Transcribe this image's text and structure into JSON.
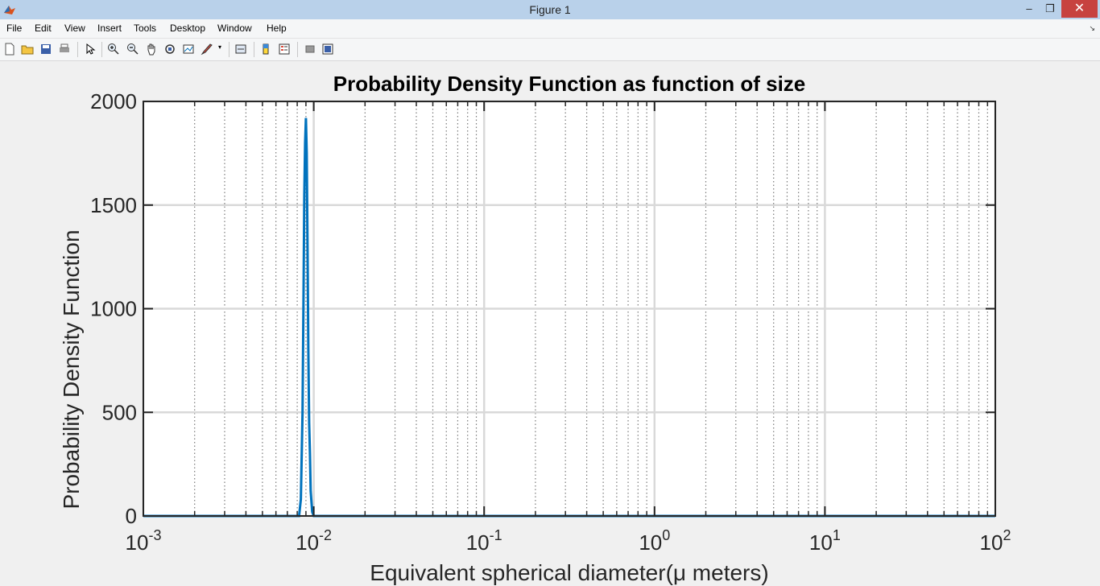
{
  "window": {
    "title": "Figure 1",
    "minimize": "–",
    "restore": "❐",
    "close": "✕"
  },
  "menu": [
    "File",
    "Edit",
    "View",
    "Insert",
    "Tools",
    "Desktop",
    "Window",
    "Help"
  ],
  "toolbar_icons": [
    "new-figure-icon",
    "open-file-icon",
    "save-icon",
    "print-icon",
    "pointer-icon",
    "zoom-in-icon",
    "zoom-out-icon",
    "pan-icon",
    "rotate-3d-icon",
    "data-cursor-icon",
    "brush-icon",
    "link-plot-icon",
    "colorbar-icon",
    "legend-icon",
    "hide-plot-tools-icon",
    "show-plot-tools-icon"
  ],
  "colors": {
    "line": "#0072bd",
    "grid": "#d9d9d9",
    "axes": "#262626"
  },
  "chart_data": {
    "type": "line",
    "title": "Probability Density Function as function of size",
    "xlabel": "Equivalent spherical diameter(μ meters)",
    "ylabel": "Probability Density Function",
    "xscale": "log",
    "xlim": [
      0.001,
      100
    ],
    "ylim": [
      0,
      2000
    ],
    "yticks": [
      "0",
      "500",
      "1000",
      "1500",
      "2000"
    ],
    "xticks": [
      {
        "base": "10",
        "exp": "-3",
        "value": 0.001
      },
      {
        "base": "10",
        "exp": "-2",
        "value": 0.01
      },
      {
        "base": "10",
        "exp": "-1",
        "value": 0.1
      },
      {
        "base": "10",
        "exp": "0",
        "value": 1
      },
      {
        "base": "10",
        "exp": "1",
        "value": 10
      },
      {
        "base": "10",
        "exp": "2",
        "value": 100
      }
    ],
    "grid": true,
    "minor_grid": true,
    "series": [
      {
        "x": [
          0.001,
          0.0082,
          0.0084,
          0.0086,
          0.0087,
          0.0088,
          0.0089,
          0.009,
          0.0091,
          0.0092,
          0.0093,
          0.0094,
          0.0095,
          0.0096,
          0.0098,
          0.01,
          100
        ],
        "y": [
          0,
          0,
          80,
          500,
          1000,
          1550,
          1800,
          1920,
          1750,
          1300,
          800,
          450,
          300,
          120,
          20,
          0,
          0
        ]
      }
    ]
  }
}
